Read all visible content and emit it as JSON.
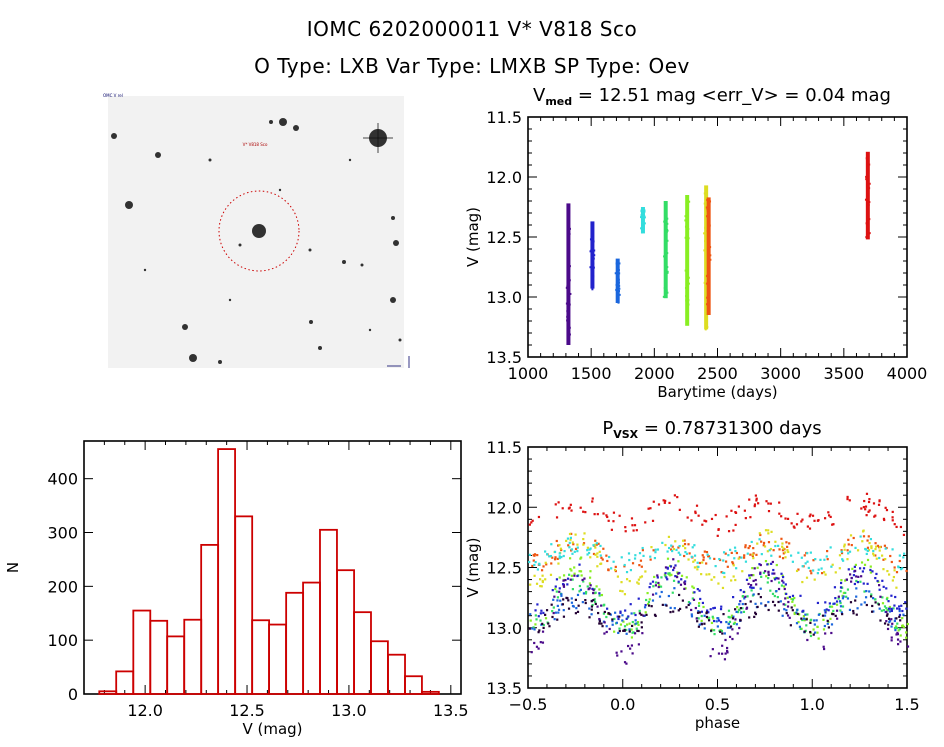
{
  "header": {
    "title_line1": "IOMC 6202000011     V* V818 Sco",
    "title_line2": "O Type: LXB   Var Type: LMXB   SP Type: Oev"
  },
  "image_panel": {
    "type": "finder-chart",
    "target_label": "V* V818 Sco",
    "corner_label_tl": "OMC V rel",
    "colors": {
      "circle": "#cc0000",
      "stars": "#111111",
      "background": "#f2f2f2"
    }
  },
  "chart_data": [
    {
      "id": "lightcurve",
      "type": "scatter",
      "title_main": "V",
      "title_sub": "med",
      "title_rest": " = 12.51 mag <err_V> = 0.04 mag",
      "xlabel": "Barytime (days)",
      "ylabel": "V (mag)",
      "xlim": [
        1000,
        4000
      ],
      "ylim": [
        13.5,
        11.5
      ],
      "y_inverted": true,
      "xticks": [
        1000,
        1500,
        2000,
        2500,
        3000,
        3500,
        4000
      ],
      "xtick_labels": [
        "1000",
        "1500",
        "2000",
        "2500",
        "3000",
        "3500",
        "4000"
      ],
      "yticks": [
        11.5,
        12.0,
        12.5,
        13.0,
        13.5
      ],
      "ytick_labels": [
        "11.5",
        "12.0",
        "12.5",
        "13.0",
        "13.5"
      ],
      "series": [
        {
          "name": "season-1",
          "color": "#4b0a8a",
          "x": 1320,
          "vmin": 12.22,
          "vmax": 13.4
        },
        {
          "name": "season-2",
          "color": "#2222cc",
          "x": 1510,
          "vmin": 12.37,
          "vmax": 12.93
        },
        {
          "name": "season-3",
          "color": "#1a66dd",
          "x": 1710,
          "vmin": 12.68,
          "vmax": 13.05
        },
        {
          "name": "season-4",
          "color": "#33dddd",
          "x": 1910,
          "vmin": 12.25,
          "vmax": 12.47
        },
        {
          "name": "season-5",
          "color": "#33dd66",
          "x": 2090,
          "vmin": 12.2,
          "vmax": 13.01
        },
        {
          "name": "season-6",
          "color": "#88ee22",
          "x": 2260,
          "vmin": 12.15,
          "vmax": 13.24
        },
        {
          "name": "season-7",
          "color": "#dddd22",
          "x": 2410,
          "vmin": 12.07,
          "vmax": 13.27
        },
        {
          "name": "season-8",
          "color": "#ee5511",
          "x": 2430,
          "vmin": 12.17,
          "vmax": 13.15
        },
        {
          "name": "season-9",
          "color": "#dd1111",
          "x": 3690,
          "vmin": 11.79,
          "vmax": 12.52
        }
      ]
    },
    {
      "id": "histogram",
      "type": "bar",
      "title": "",
      "xlabel": "V (mag)",
      "ylabel": "N",
      "xlim": [
        11.7,
        13.55
      ],
      "ylim": [
        0,
        470
      ],
      "xticks": [
        12.0,
        12.5,
        13.0,
        13.5
      ],
      "xtick_labels": [
        "12.0",
        "12.5",
        "13.0",
        "13.5"
      ],
      "yticks": [
        0,
        100,
        200,
        300,
        400
      ],
      "ytick_labels": [
        "0",
        "100",
        "200",
        "300",
        "400"
      ],
      "bar_color": "#cc0000",
      "bin_width": 0.0833,
      "bin_left_edges": [
        11.775,
        11.858,
        11.942,
        12.025,
        12.108,
        12.192,
        12.275,
        12.358,
        12.442,
        12.525,
        12.608,
        12.692,
        12.775,
        12.858,
        12.942,
        13.025,
        13.108,
        13.192,
        13.275,
        13.358
      ],
      "values": [
        5,
        42,
        155,
        136,
        107,
        138,
        277,
        455,
        330,
        137,
        129,
        188,
        207,
        305,
        230,
        152,
        98,
        73,
        33,
        4
      ]
    },
    {
      "id": "phased",
      "type": "scatter",
      "title_main": "P",
      "title_sub": "VSX",
      "title_rest": " = 0.78731300 days",
      "xlabel": "phase",
      "ylabel": "V (mag)",
      "xlim": [
        -0.5,
        1.5
      ],
      "ylim": [
        13.5,
        11.5
      ],
      "y_inverted": true,
      "xticks": [
        -0.5,
        0.0,
        0.5,
        1.0,
        1.5
      ],
      "xtick_labels": [
        "−0.5",
        "0.0",
        "0.5",
        "1.0",
        "1.5"
      ],
      "yticks": [
        11.5,
        12.0,
        12.5,
        13.0,
        13.5
      ],
      "ytick_labels": [
        "11.5",
        "12.0",
        "12.5",
        "13.0",
        "13.5"
      ],
      "series": [
        {
          "name": "season-9",
          "color": "#dd1111",
          "base": 12.05,
          "amp": 0.1
        },
        {
          "name": "season-8",
          "color": "#ee5511",
          "base": 12.38,
          "amp": 0.1
        },
        {
          "name": "season-7",
          "color": "#dddd22",
          "base": 12.45,
          "amp": 0.2
        },
        {
          "name": "season-6",
          "color": "#88ee22",
          "base": 12.75,
          "amp": 0.3
        },
        {
          "name": "season-5",
          "color": "#33dd66",
          "base": 12.8,
          "amp": 0.2
        },
        {
          "name": "season-4",
          "color": "#33dddd",
          "base": 12.38,
          "amp": 0.08
        },
        {
          "name": "season-3",
          "color": "#1a66dd",
          "base": 12.85,
          "amp": 0.12
        },
        {
          "name": "season-2",
          "color": "#2222cc",
          "base": 12.7,
          "amp": 0.18
        },
        {
          "name": "season-1",
          "color": "#4b0a8a",
          "base": 12.85,
          "amp": 0.4
        },
        {
          "name": "season-0",
          "color": "#220033",
          "base": 12.88,
          "amp": 0.1
        }
      ]
    }
  ]
}
